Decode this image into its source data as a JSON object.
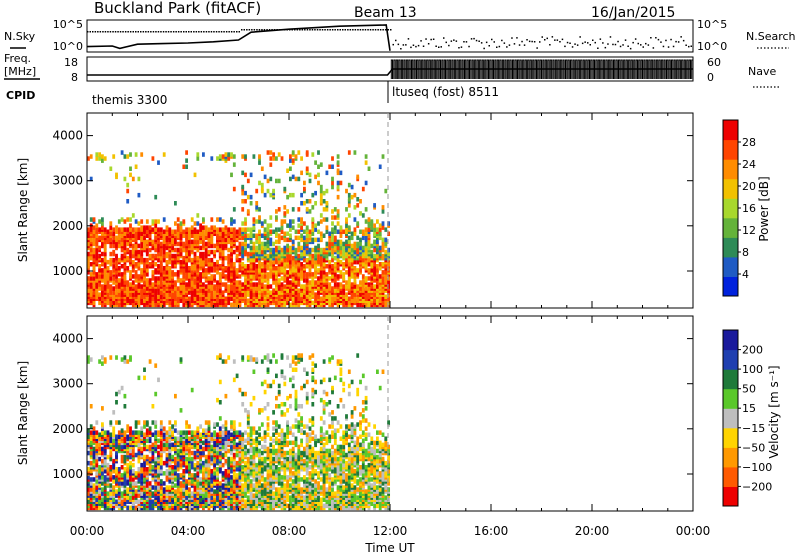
{
  "header": {
    "title": "Buckland Park (fitACF)",
    "beam": "Beam 13",
    "date": "16/Jan/2015"
  },
  "nsky_panel": {
    "label": "N.Sky",
    "yticks": [
      "10^5",
      "10^0"
    ],
    "right_yticks": [
      "10^5",
      "10^0"
    ],
    "right_label": "N.Search"
  },
  "freq_panel": {
    "label_line1": "Freq.",
    "label_line2": "[MHz]",
    "yticks": [
      "18",
      "8"
    ],
    "right_yticks": [
      "60",
      "0"
    ],
    "right_label": "Nave"
  },
  "cpid": {
    "label": "CPID",
    "segments": [
      "themis 3300",
      "ltuseq (fost) 8511"
    ]
  },
  "power_panel": {
    "ylabel": "Slant Range [km]",
    "cbar_label": "Power [dB]",
    "cbar_ticks": [
      "28",
      "24",
      "20",
      "16",
      "12",
      "8",
      "4"
    ]
  },
  "velocity_panel": {
    "ylabel": "Slant Range [km]",
    "cbar_label": "Velocity [m s⁻¹]",
    "cbar_ticks": [
      "200",
      "100",
      "50",
      "15",
      "−15",
      "−50",
      "−100",
      "−200"
    ]
  },
  "xaxis": {
    "label": "Time UT"
  },
  "colors": {
    "power": [
      "#0022dd",
      "#1f5bc4",
      "#2e8b57",
      "#64b33a",
      "#a8d82d",
      "#f2c100",
      "#ff8c00",
      "#ff4500",
      "#ee0000"
    ],
    "velocity": [
      "#ee0000",
      "#ff5a00",
      "#ff9900",
      "#ffd400",
      "#bebebe",
      "#5ac82a",
      "#1f7a3a",
      "#1f3fb0",
      "#1a1a9c"
    ]
  },
  "chart_data": [
    {
      "type": "line",
      "title": "N.Sky / N.Search",
      "x_hours": [
        0,
        1,
        1.3,
        2,
        3,
        4,
        5,
        6,
        6.5,
        8,
        10,
        11.85,
        12
      ],
      "nsky_log10": [
        0.9,
        1.0,
        0.6,
        1.3,
        1.4,
        1.5,
        1.7,
        2.0,
        3.3,
        3.8,
        4.3,
        4.5,
        0.2
      ],
      "xlim": [
        0,
        24
      ],
      "ylim": [
        0,
        5
      ]
    },
    {
      "type": "line",
      "title": "Freq. / Nave",
      "x_hours": [
        0,
        6,
        11.9,
        12.1,
        24
      ],
      "freq_mhz": [
        10.5,
        10.5,
        10.5,
        13.0,
        13.0
      ],
      "nave_range_after_12": [
        0,
        60
      ],
      "xlim": [
        0,
        24
      ],
      "ylim": [
        8,
        18
      ]
    },
    {
      "type": "heatmap",
      "title": "Power [dB]",
      "x_ticks": [
        "00:00",
        "04:00",
        "08:00",
        "12:00",
        "16:00",
        "20:00",
        "00:00"
      ],
      "y_ticks": [
        "4000",
        "3000",
        "2000",
        "1000"
      ],
      "xlim": [
        0,
        24
      ],
      "ylim": [
        180,
        4500
      ],
      "data_extent_hours": [
        0,
        12
      ],
      "color_range": [
        0,
        30
      ]
    },
    {
      "type": "heatmap",
      "title": "Velocity [m s⁻¹]",
      "x_ticks": [
        "00:00",
        "04:00",
        "08:00",
        "12:00",
        "16:00",
        "20:00",
        "00:00"
      ],
      "y_ticks": [
        "4000",
        "3000",
        "2000",
        "1000"
      ],
      "xlim": [
        0,
        24
      ],
      "ylim": [
        180,
        4500
      ],
      "data_extent_hours": [
        0,
        12
      ],
      "color_range": [
        -250,
        250
      ]
    }
  ]
}
